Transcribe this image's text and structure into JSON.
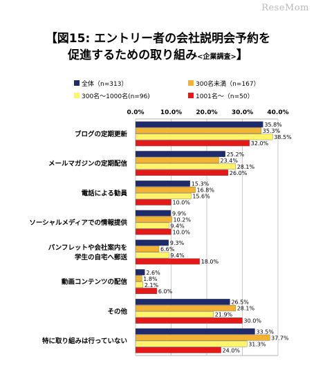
{
  "brand": "ReseMom",
  "title": {
    "line1": "【図15:  エントリー者の会社説明会予約を",
    "line2": "促進するための取り組み",
    "suffix": "<企業調査>",
    "close": "】"
  },
  "chart_data": {
    "type": "bar",
    "orientation": "horizontal",
    "categories": [
      [
        "ブログの定期更新"
      ],
      [
        "メールマガジンの定期配信"
      ],
      [
        "電話による勧員"
      ],
      [
        "ソーシャルメディアでの情報提供"
      ],
      [
        "パンフレットや会社案内を",
        "学生の自宅へ郵送"
      ],
      [
        "動画コンテンツの配信"
      ],
      [
        "その他"
      ],
      [
        "特に取り組みは行っていない"
      ]
    ],
    "series": [
      {
        "name": "全体（n=313）",
        "color": "#1f2a6b",
        "values": [
          35.8,
          25.2,
          15.3,
          9.9,
          9.3,
          2.6,
          26.5,
          33.5
        ]
      },
      {
        "name": "300名未満（n=167）",
        "color": "#f2b233",
        "values": [
          35.3,
          23.4,
          16.8,
          10.2,
          6.6,
          1.8,
          28.1,
          37.7
        ]
      },
      {
        "name": "300名～1000名(n=96)",
        "color": "#fff46a",
        "values": [
          38.5,
          28.1,
          15.6,
          9.4,
          9.4,
          2.1,
          21.9,
          31.3
        ]
      },
      {
        "name": "1001名～（n=50）",
        "color": "#e41a1a",
        "values": [
          32.0,
          26.0,
          10.0,
          10.0,
          18.0,
          6.0,
          30.0,
          24.0
        ]
      }
    ],
    "x_ticks": [
      "0.0%",
      "10.0%",
      "20.0%",
      "30.0%",
      "40.0%"
    ],
    "xlim": [
      0,
      40
    ],
    "value_suffix": "%",
    "legend_position": "top"
  }
}
